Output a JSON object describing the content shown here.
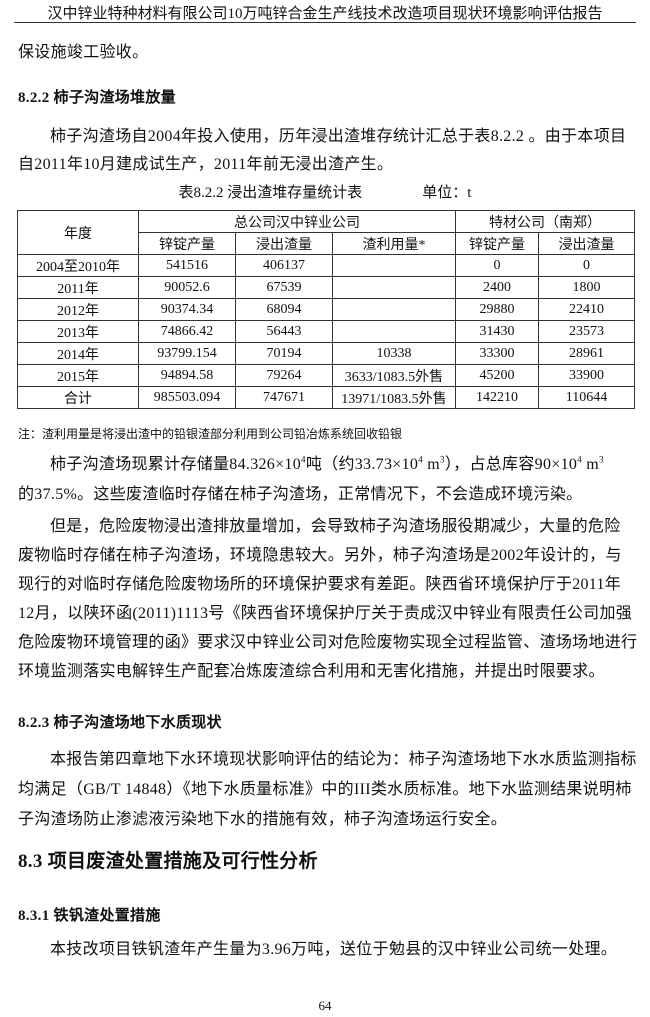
{
  "header": "汉中锌业特种材料有限公司10万吨锌合金生产线技术改造项目现状环境影响评估报告",
  "lines": {
    "l0": "保设施竣工验收。",
    "h822": "8.2.2  柿子沟渣场堆放量",
    "p1a": "柿子沟渣场自2004年投入使用，历年浸出渣堆存统计汇总于表8.2.2 。由于本项目",
    "p1b": "自2011年10月建成试生产，2011年前无浸出渣产生。",
    "p2a_1": "柿子沟渣场现累计存储量84.326×10",
    "p2a_2": "吨（约33.73×10",
    "p2a_3": " m",
    "p2a_4": "），占总库容90×10",
    "p2a_5": " m",
    "exp4": "4",
    "exp3": "3",
    "p2b": "的37.5%。这些废渣临时存储在柿子沟渣场，正常情况下，不会造成环境污染。",
    "p3a": "但是，危险废物浸出渣排放量增加，会导致柿子沟渣场服役期减少，大量的危险",
    "p3b": "废物临时存储在柿子沟渣场，环境隐患较大。另外，柿子沟渣场是2002年设计的，与",
    "p3c": "现行的对临时存储危险废物场所的环境保护要求有差距。陕西省环境保护厅于2011年",
    "p3d": "12月，以陕环函(2011)1113号《陕西省环境保护厅关于责成汉中锌业有限责任公司加强",
    "p3e": "危险废物环境管理的函》要求汉中锌业公司对危险废物实现全过程监管、渣场场地进行",
    "p3f": "环境监测落实电解锌生产配套冶炼废渣综合利用和无害化措施，并提出时限要求。",
    "h823": "8.2.3  柿子沟渣场地下水质现状",
    "p4a": "本报告第四章地下水环境现状影响评估的结论为：柿子沟渣场地下水水质监测指标",
    "p4b": "均满足（GB/T 14848）《地下水质量标准》中的III类水质标准。地下水监测结果说明柿",
    "p4c": "子沟渣场防止渗滤液污染地下水的措施有效，柿子沟渣场运行安全。",
    "h83": "8.3  项目废渣处置措施及可行性分析",
    "h831": "8.3.1 铁钒渣处置措施",
    "p5": "本技改项目铁钒渣年产生量为3.96万吨，送位于勉县的汉中锌业公司统一处理。"
  },
  "table": {
    "caption": "表8.2.2      浸出渣堆存量统计表",
    "unit": "单位：t",
    "h_year": "年度",
    "h_group1": "总公司汉中锌业公司",
    "h_group2": "特材公司（南郑）",
    "sub": [
      "锌锭产量",
      "浸出渣量",
      "渣利用量*",
      "锌锭产量",
      "浸出渣量"
    ],
    "rows": [
      [
        "2004至2010年",
        "541516",
        "406137",
        "",
        "0",
        "0"
      ],
      [
        "2011年",
        "90052.6",
        "67539",
        "",
        "2400",
        "1800"
      ],
      [
        "2012年",
        "90374.34",
        "68094",
        "",
        "29880",
        "22410"
      ],
      [
        "2013年",
        "74866.42",
        "56443",
        "",
        "31430",
        "23573"
      ],
      [
        "2014年",
        "93799.154",
        "70194",
        "10338",
        "33300",
        "28961"
      ],
      [
        "2015年",
        "94894.58",
        "79264",
        "3633/1083.5外售",
        "45200",
        "33900"
      ],
      [
        "合计",
        "985503.094",
        "747671",
        "13971/1083.5外售",
        "142210",
        "110644"
      ]
    ],
    "note": "注：渣利用量是将浸出渣中的铅银渣部分利用到公司铅冶炼系统回收铅银"
  },
  "page_number": "64"
}
